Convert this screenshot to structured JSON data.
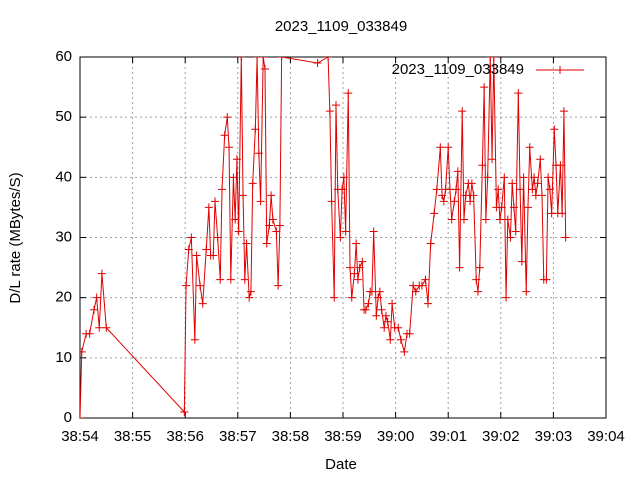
{
  "chart_data": {
    "type": "line",
    "title": "2023_1109_033849",
    "x_label": "Date",
    "y_label": "D/L rate (MBytes/S)",
    "x": [
      2334,
      2336,
      2341,
      2345,
      2350,
      2353,
      2356,
      2359,
      2364,
      2453,
      2455,
      2458,
      2461,
      2465,
      2467,
      2471,
      2474,
      2478,
      2481,
      2483,
      2486,
      2488,
      2491,
      2494,
      2496,
      2499,
      2502,
      2504,
      2506,
      2509,
      2511,
      2513,
      2515,
      2518,
      2520,
      2522,
      2524,
      2527,
      2529,
      2531,
      2534,
      2536,
      2538,
      2540,
      2543,
      2545,
      2547,
      2550,
      2552,
      2554,
      2558,
      2560,
      2562,
      2564,
      2605,
      2617,
      2619,
      2621,
      2624,
      2626,
      2628,
      2631,
      2633,
      2635,
      2637,
      2640,
      2642,
      2644,
      2647,
      2649,
      2651,
      2653,
      2656,
      2658,
      2660,
      2663,
      2665,
      2667,
      2669,
      2672,
      2674,
      2676,
      2678,
      2681,
      2683,
      2685,
      2688,
      2690,
      2693,
      2697,
      2700,
      2704,
      2707,
      2710,
      2714,
      2717,
      2721,
      2724,
      2728,
      2731,
      2734,
      2738,
      2741,
      2745,
      2747,
      2749,
      2751,
      2754,
      2756,
      2758,
      2761,
      2763,
      2765,
      2767,
      2770,
      2772,
      2774,
      2777,
      2779,
      2781,
      2783,
      2786,
      2788,
      2790,
      2793,
      2795,
      2797,
      2799,
      2802,
      2804,
      2806,
      2809,
      2811,
      2813,
      2815,
      2818,
      2820,
      2822,
      2825,
      2827,
      2829,
      2831,
      2834,
      2836,
      2838,
      2840,
      2843,
      2845,
      2847,
      2850,
      2852,
      2854,
      2856,
      2859,
      2861,
      2863,
      2866,
      2868,
      2870,
      2872,
      2875,
      2877,
      2879,
      2882,
      2884,
      2886,
      2888
    ],
    "series": [
      {
        "name": "2023_1109_033849",
        "color": "#e00000",
        "values": [
          0,
          11,
          14,
          14,
          18,
          20,
          15,
          24,
          15,
          1,
          22,
          28,
          30,
          13,
          27,
          22,
          19,
          28,
          35,
          27,
          27,
          36,
          30,
          23,
          38,
          47,
          50,
          45,
          23,
          40,
          33,
          43,
          31,
          60,
          37,
          23,
          29,
          20,
          21,
          39,
          48,
          60,
          44,
          36,
          60,
          58,
          29,
          32,
          37,
          33,
          31,
          22,
          32,
          60,
          59,
          60,
          51,
          36,
          20,
          52,
          38,
          30,
          38,
          40,
          31,
          54,
          25,
          20,
          24,
          29,
          23,
          25,
          26,
          18,
          18,
          19,
          21,
          21,
          31,
          17,
          20,
          21,
          18,
          15,
          17,
          16,
          13,
          19,
          15,
          15,
          13,
          11,
          14,
          14,
          22,
          21,
          22,
          22,
          23,
          19,
          29,
          34,
          38,
          45,
          37,
          36,
          38,
          45,
          38,
          33,
          36,
          38,
          41,
          25,
          51,
          33,
          37,
          39,
          36,
          39,
          37,
          23,
          21,
          25,
          42,
          55,
          33,
          40,
          60,
          43,
          60,
          35,
          38,
          33,
          35,
          40,
          20,
          33,
          30,
          39,
          35,
          31,
          54,
          38,
          26,
          40,
          21,
          35,
          45,
          38,
          40,
          37,
          39,
          43,
          37,
          23,
          23,
          40,
          38,
          34,
          48,
          42,
          34,
          42,
          34,
          51,
          30
        ]
      }
    ],
    "xlim": [
      2334,
      2934
    ],
    "xticks": [
      {
        "value": 2334,
        "label": "38:54"
      },
      {
        "value": 2394,
        "label": "38:55"
      },
      {
        "value": 2454,
        "label": "38:56"
      },
      {
        "value": 2514,
        "label": "38:57"
      },
      {
        "value": 2574,
        "label": "38:58"
      },
      {
        "value": 2634,
        "label": "38:59"
      },
      {
        "value": 2694,
        "label": "39:00"
      },
      {
        "value": 2754,
        "label": "39:01"
      },
      {
        "value": 2814,
        "label": "39:02"
      },
      {
        "value": 2874,
        "label": "39:03"
      },
      {
        "value": 2934,
        "label": "39:04"
      }
    ],
    "ylim": [
      0,
      60
    ],
    "yticks": [
      0,
      10,
      20,
      30,
      40,
      50,
      60
    ],
    "grid": true,
    "legend": "top-right"
  }
}
